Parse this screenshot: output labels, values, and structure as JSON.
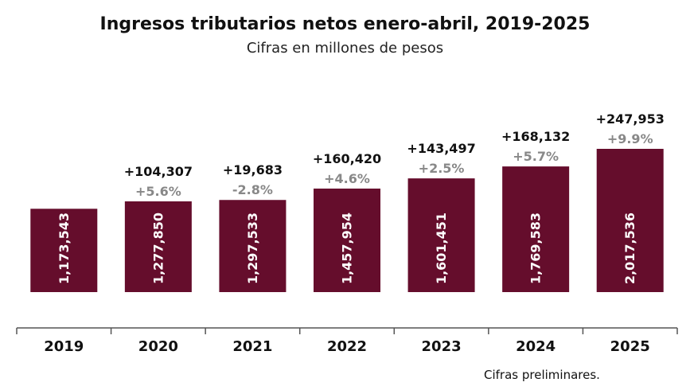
{
  "header": {
    "title": "Ingresos tributarios netos enero-abril, 2019-2025",
    "subtitle": "Cifras en millones de pesos"
  },
  "footnote": "Cifras preliminares.",
  "colors": {
    "bar": "#650D2C",
    "pct_text": "#888888",
    "axis": "#555555"
  },
  "chart_data": {
    "type": "bar",
    "title": "Ingresos tributarios netos enero-abril, 2019-2025",
    "subtitle": "Cifras en millones de pesos",
    "xlabel": "",
    "ylabel": "",
    "categories": [
      "2019",
      "2020",
      "2021",
      "2022",
      "2023",
      "2024",
      "2025"
    ],
    "values": [
      1173543,
      1277850,
      1297533,
      1457954,
      1601451,
      1769583,
      2017536
    ],
    "value_labels": [
      "1,173,543",
      "1,277,850",
      "1,297,533",
      "1,457,954",
      "1,601,451",
      "1,769,583",
      "2,017,536"
    ],
    "differences": [
      "",
      "+104,307",
      "+19,683",
      "+160,420",
      "+143,497",
      "+168,132",
      "+247,953"
    ],
    "real_growth": [
      "",
      "+5.6%",
      "-2.8%",
      "+4.6%",
      "+2.5%",
      "+5.7%",
      "+9.9%"
    ],
    "legend": "none",
    "grid": false
  }
}
